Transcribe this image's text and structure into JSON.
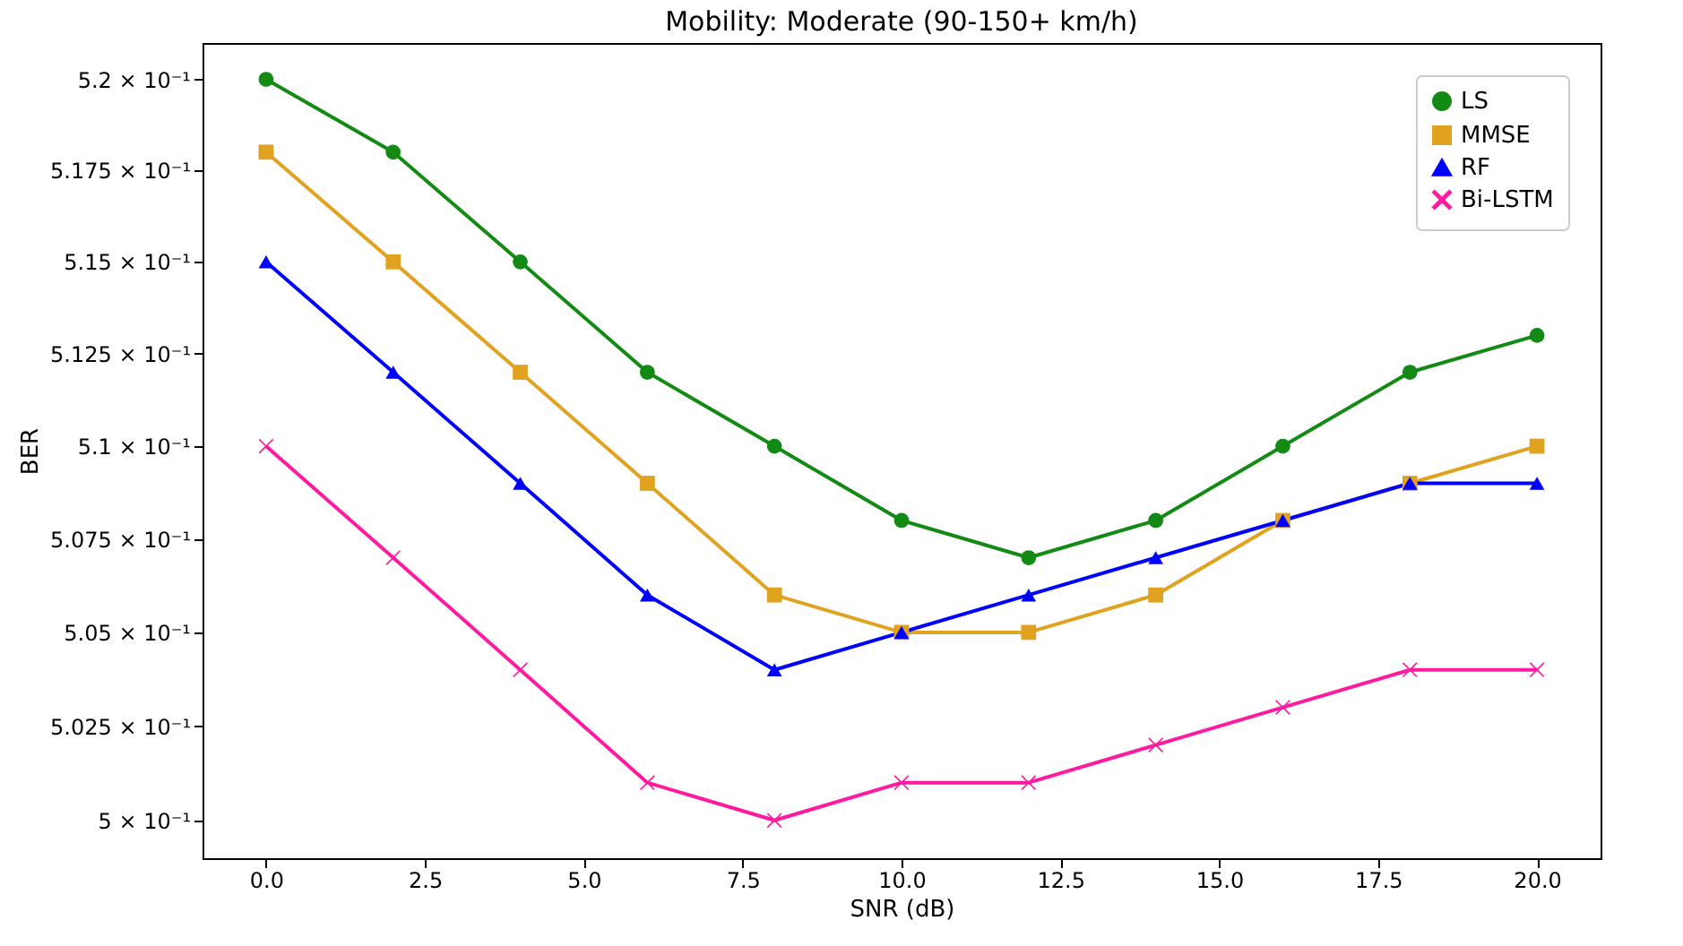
{
  "chart_data": {
    "type": "line",
    "title": "Mobility: Moderate (90-150+ km/h)",
    "xlabel": "SNR (dB)",
    "ylabel": "BER",
    "x": [
      0,
      2,
      4,
      6,
      8,
      10,
      12,
      14,
      16,
      18,
      20
    ],
    "series": [
      {
        "name": "LS",
        "color": "#138a13",
        "marker": "circle",
        "values": [
          0.52,
          0.518,
          0.515,
          0.512,
          0.51,
          0.508,
          0.507,
          0.508,
          0.51,
          0.512,
          0.513
        ]
      },
      {
        "name": "MMSE",
        "color": "#e0a21f",
        "marker": "square",
        "values": [
          0.518,
          0.515,
          0.512,
          0.509,
          0.506,
          0.505,
          0.505,
          0.506,
          0.508,
          0.509,
          0.51
        ]
      },
      {
        "name": "RF",
        "color": "#0000ff",
        "marker": "triangle",
        "values": [
          0.515,
          0.512,
          0.509,
          0.506,
          0.504,
          0.505,
          0.506,
          0.507,
          0.508,
          0.509,
          0.509
        ]
      },
      {
        "name": "Bi-LSTM",
        "color": "#ff1aa0",
        "marker": "cross",
        "values": [
          0.51,
          0.507,
          0.504,
          0.501,
          0.5,
          0.501,
          0.501,
          0.502,
          0.503,
          0.504,
          0.504
        ]
      }
    ],
    "log": "y",
    "xlim": [
      -1,
      21
    ],
    "ylim": [
      0.499,
      0.521
    ],
    "xticks": [
      {
        "value": 0,
        "label": "0.0"
      },
      {
        "value": 2.5,
        "label": "2.5"
      },
      {
        "value": 5,
        "label": "5.0"
      },
      {
        "value": 7.5,
        "label": "7.5"
      },
      {
        "value": 10,
        "label": "10.0"
      },
      {
        "value": 12.5,
        "label": "12.5"
      },
      {
        "value": 15,
        "label": "15.0"
      },
      {
        "value": 17.5,
        "label": "17.5"
      },
      {
        "value": 20,
        "label": "20.0"
      }
    ],
    "yticks": [
      {
        "value": 0.5,
        "label": "5 × 10⁻¹"
      },
      {
        "value": 0.5025,
        "label": "5.025 × 10⁻¹"
      },
      {
        "value": 0.505,
        "label": "5.05 × 10⁻¹"
      },
      {
        "value": 0.5075,
        "label": "5.075 × 10⁻¹"
      },
      {
        "value": 0.51,
        "label": "5.1 × 10⁻¹"
      },
      {
        "value": 0.5125,
        "label": "5.125 × 10⁻¹"
      },
      {
        "value": 0.515,
        "label": "5.15 × 10⁻¹"
      },
      {
        "value": 0.5175,
        "label": "5.175 × 10⁻¹"
      },
      {
        "value": 0.52,
        "label": "5.2 × 10⁻¹"
      }
    ],
    "grid": false,
    "legend": "top right",
    "line_style": "solid"
  }
}
